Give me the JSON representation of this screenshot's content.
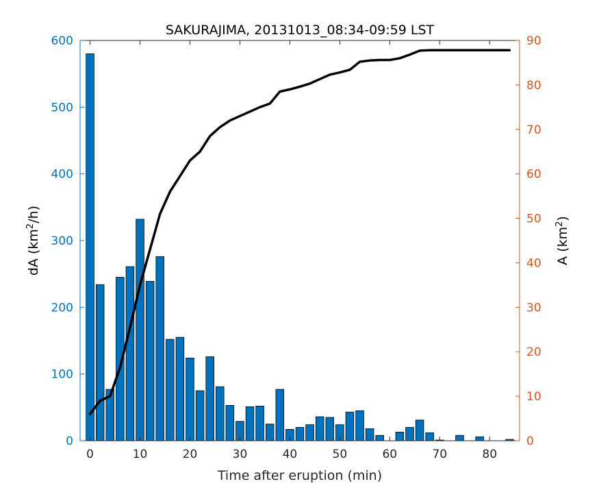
{
  "chart_data": {
    "type": "bar",
    "title": "SAKURAJIMA, 20131013_08:34-09:59 LST",
    "xlabel": "Time after eruption (min)",
    "ylabel_left": {
      "base": "dA (km",
      "sup": "2",
      "tail": "/h)"
    },
    "ylabel_right": {
      "base": "A (km",
      "sup": "2",
      "tail": ")"
    },
    "xlim": [
      -2,
      86
    ],
    "ylim_left": [
      0,
      600
    ],
    "ylim_right": [
      0,
      90
    ],
    "x_ticks": [
      0,
      10,
      20,
      30,
      40,
      50,
      60,
      70,
      80
    ],
    "y_ticks_left": [
      0,
      100,
      200,
      300,
      400,
      500,
      600
    ],
    "y_ticks_right": [
      0,
      10,
      20,
      30,
      40,
      50,
      60,
      70,
      80,
      90
    ],
    "grid": false,
    "colors": {
      "left_axis": "#0072BD",
      "right_axis": "#D95319",
      "bars": "#0072BD",
      "line": "#000000"
    },
    "series": [
      {
        "type": "bar",
        "axis": "left",
        "x": [
          0,
          2,
          4,
          6,
          8,
          10,
          12,
          14,
          16,
          18,
          20,
          22,
          24,
          26,
          28,
          30,
          32,
          34,
          36,
          38,
          40,
          42,
          44,
          46,
          48,
          50,
          52,
          54,
          56,
          58,
          60,
          62,
          64,
          66,
          68,
          70,
          72,
          74,
          76,
          78,
          80,
          82,
          84
        ],
        "values": [
          580,
          234,
          77,
          245,
          261,
          332,
          239,
          276,
          152,
          155,
          124,
          75,
          126,
          81,
          53,
          29,
          51,
          52,
          25,
          77,
          17,
          20,
          24,
          36,
          35,
          24,
          43,
          45,
          18,
          8,
          0,
          13,
          20,
          31,
          12,
          1,
          0,
          8,
          0,
          6,
          0,
          0,
          2
        ]
      },
      {
        "type": "line",
        "axis": "right",
        "x": [
          0,
          2,
          4,
          6,
          8,
          10,
          12,
          14,
          16,
          18,
          20,
          22,
          24,
          26,
          28,
          30,
          32,
          34,
          36,
          38,
          40,
          42,
          44,
          46,
          48,
          50,
          52,
          54,
          56,
          58,
          60,
          62,
          64,
          66,
          68,
          70,
          72,
          74,
          76,
          78,
          80,
          82,
          84
        ],
        "values": [
          6.0,
          9.0,
          10.0,
          16.5,
          25.5,
          35.0,
          43.0,
          51.0,
          56.0,
          59.5,
          63.0,
          65.0,
          68.5,
          70.5,
          72.0,
          73.0,
          74.0,
          75.0,
          75.8,
          78.5,
          79.0,
          79.6,
          80.3,
          81.3,
          82.3,
          82.8,
          83.4,
          85.2,
          85.5,
          85.6,
          85.6,
          86.0,
          86.8,
          87.7,
          87.8,
          87.8,
          87.8,
          87.8,
          87.8,
          87.8,
          87.8,
          87.8,
          87.8
        ]
      }
    ]
  }
}
